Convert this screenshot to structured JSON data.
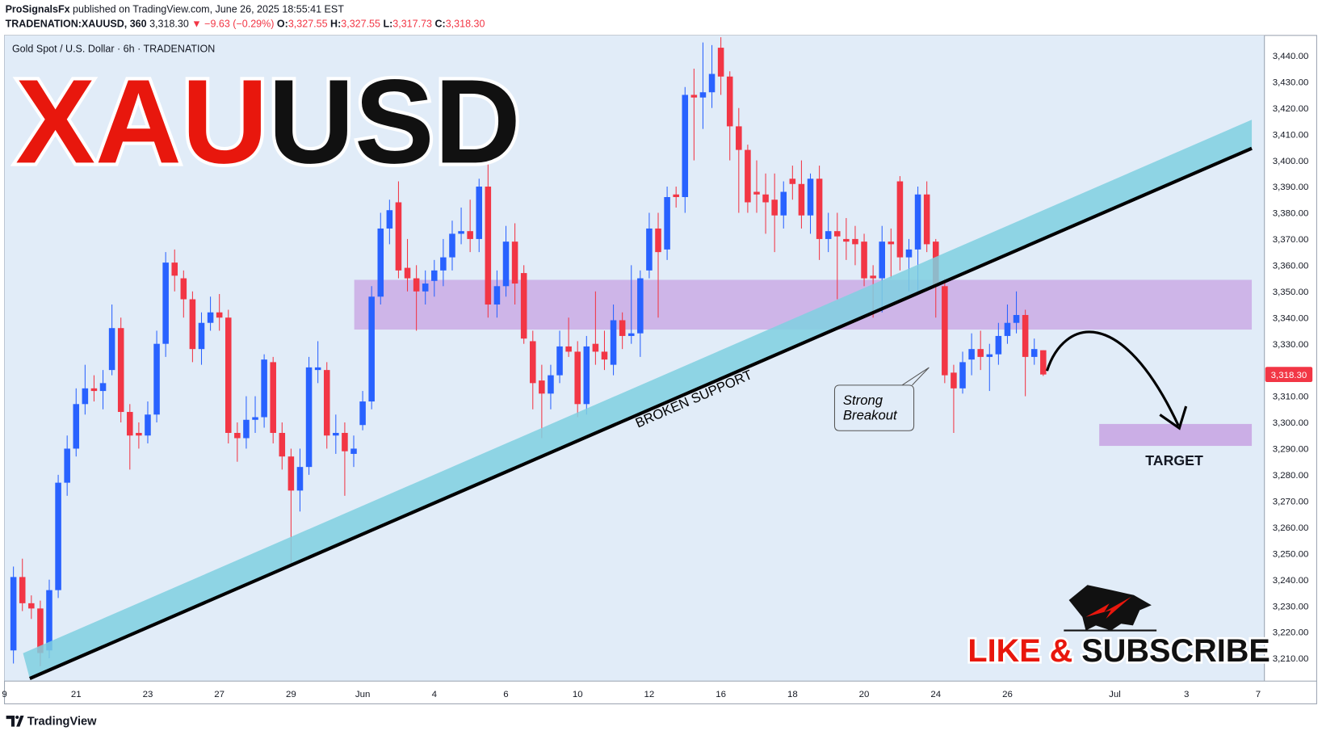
{
  "header": {
    "publisher": "ProSignalsFx",
    "published": "published on TradingView.com, June 26, 2025 18:55:41 EST",
    "symbol": "TRADENATION:XAUUSD, 360",
    "price": "3,318.30",
    "change": "▼ −9.63 (−0.29%)",
    "o_label": "O:",
    "o": "3,327.55",
    "h_label": "H:",
    "h": "3,327.55",
    "l_label": "L:",
    "l": "3,317.73",
    "c_label": "C:",
    "c": "3,318.30"
  },
  "chart_data": {
    "type": "candlestick",
    "title": "Gold Spot / U.S. Dollar · 6h · TRADENATION",
    "up_color": "#2962ff",
    "down_color": "#f23645",
    "open": [
      3213,
      3241,
      3231,
      3229,
      3213,
      3236,
      3277,
      3290,
      3307,
      3313,
      3312,
      3320,
      3336,
      3304,
      3296,
      3295,
      3303,
      3330,
      3361,
      3355,
      3347,
      3328,
      3338,
      3342,
      3340,
      3296,
      3294,
      3301,
      3302,
      3323,
      3296,
      3287,
      3274,
      3283,
      3320,
      3320,
      3295,
      3296,
      3288,
      3299,
      3308,
      3348,
      3374,
      3384,
      3359,
      3355,
      3350,
      3354,
      3358,
      3363,
      3372,
      3373,
      3370,
      3390,
      3345,
      3352,
      3369,
      3357,
      3331,
      3316,
      3311,
      3318,
      3329,
      3327,
      3307,
      3330,
      3327,
      3322,
      3339,
      3333,
      3334,
      3358,
      3374,
      3366,
      3387,
      3386,
      3425,
      3424,
      3426,
      3443,
      3432,
      3413,
      3404,
      3388,
      3387,
      3385,
      3379,
      3393,
      3391,
      3379,
      3393,
      3370,
      3373,
      3370,
      3370,
      3369,
      3356,
      3355,
      3369,
      3392,
      3363,
      3366,
      3387,
      3369,
      3352,
      3319,
      3313,
      3324,
      3328,
      3325,
      3326,
      3333,
      3338,
      3341,
      3325,
      3327.55
    ],
    "high": [
      3245,
      3248,
      3234,
      3232,
      3240,
      3280,
      3295,
      3313,
      3322,
      3318,
      3320,
      3345,
      3340,
      3307,
      3300,
      3308,
      3335,
      3365,
      3366,
      3358,
      3350,
      3342,
      3348,
      3349,
      3343,
      3300,
      3310,
      3310,
      3326,
      3325,
      3300,
      3290,
      3290,
      3325,
      3331,
      3323,
      3303,
      3300,
      3295,
      3312,
      3352,
      3380,
      3385,
      3392,
      3370,
      3360,
      3358,
      3362,
      3370,
      3377,
      3382,
      3385,
      3393,
      3403,
      3358,
      3375,
      3376,
      3360,
      3335,
      3322,
      3322,
      3335,
      3340,
      3331,
      3333,
      3350,
      3335,
      3345,
      3342,
      3360,
      3358,
      3380,
      3380,
      3390,
      3390,
      3428,
      3435,
      3445,
      3444,
      3447,
      3434,
      3420,
      3406,
      3400,
      3395,
      3395,
      3392,
      3398,
      3400,
      3395,
      3398,
      3380,
      3380,
      3378,
      3375,
      3372,
      3360,
      3375,
      3374,
      3394,
      3370,
      3390,
      3392,
      3370,
      3355,
      3322,
      3327,
      3334,
      3335,
      3330,
      3338,
      3345,
      3350,
      3343,
      3332,
      3327.55
    ],
    "low": [
      3208,
      3228,
      3225,
      3207,
      3210,
      3233,
      3272,
      3287,
      3303,
      3308,
      3305,
      3318,
      3300,
      3282,
      3290,
      3292,
      3300,
      3325,
      3350,
      3340,
      3323,
      3322,
      3335,
      3335,
      3292,
      3285,
      3290,
      3296,
      3298,
      3292,
      3282,
      3245,
      3266,
      3280,
      3315,
      3290,
      3288,
      3272,
      3283,
      3297,
      3305,
      3345,
      3368,
      3355,
      3350,
      3335,
      3345,
      3348,
      3352,
      3358,
      3368,
      3365,
      3365,
      3340,
      3340,
      3348,
      3345,
      3330,
      3305,
      3294,
      3305,
      3315,
      3325,
      3302,
      3303,
      3322,
      3320,
      3318,
      3328,
      3330,
      3325,
      3355,
      3340,
      3362,
      3382,
      3380,
      3400,
      3412,
      3420,
      3425,
      3400,
      3380,
      3380,
      3380,
      3372,
      3365,
      3374,
      3385,
      3374,
      3372,
      3362,
      3365,
      3347,
      3362,
      3360,
      3352,
      3340,
      3342,
      3355,
      3358,
      3350,
      3350,
      3365,
      3340,
      3315,
      3296,
      3311,
      3318,
      3320,
      3312,
      3322,
      3330,
      3334,
      3310,
      3322,
      3317.73
    ],
    "close": [
      3241,
      3231,
      3229,
      3212,
      3236,
      3277,
      3290,
      3307,
      3313,
      3312,
      3315,
      3336,
      3304,
      3295,
      3295,
      3303,
      3330,
      3361,
      3356,
      3347,
      3328,
      3338,
      3342,
      3340,
      3296,
      3294,
      3301,
      3302,
      3324,
      3296,
      3287,
      3274,
      3283,
      3321,
      3321,
      3295,
      3296,
      3289,
      3290,
      3308,
      3348,
      3374,
      3381,
      3358,
      3355,
      3350,
      3353,
      3358,
      3363,
      3372,
      3373,
      3370,
      3390,
      3345,
      3352,
      3369,
      3353,
      3332,
      3315,
      3311,
      3318,
      3329,
      3327,
      3307,
      3329,
      3327,
      3324,
      3339,
      3333,
      3334,
      3355,
      3374,
      3365,
      3386,
      3386,
      3425,
      3424,
      3426,
      3433,
      3432,
      3413,
      3404,
      3384,
      3387,
      3384,
      3379,
      3388,
      3391,
      3379,
      3393,
      3370,
      3373,
      3371,
      3369,
      3368,
      3355,
      3355,
      3369,
      3368,
      3363,
      3366,
      3387,
      3368,
      3352,
      3318,
      3313,
      3323,
      3328,
      3325,
      3326,
      3333,
      3338,
      3341,
      3325,
      3328,
      3318.3
    ],
    "xlim": [
      0,
      140.7
    ],
    "xticks": [
      {
        "value": 0,
        "label": "9"
      },
      {
        "value": 8,
        "label": "21"
      },
      {
        "value": 16,
        "label": "23"
      },
      {
        "value": 24,
        "label": "27"
      },
      {
        "value": 32,
        "label": "29"
      },
      {
        "value": 40,
        "label": "Jun"
      },
      {
        "value": 48,
        "label": "4"
      },
      {
        "value": 56,
        "label": "6"
      },
      {
        "value": 64,
        "label": "10"
      },
      {
        "value": 72,
        "label": "12"
      },
      {
        "value": 80,
        "label": "16"
      },
      {
        "value": 88,
        "label": "18"
      },
      {
        "value": 96,
        "label": "20"
      },
      {
        "value": 104,
        "label": "24"
      },
      {
        "value": 112,
        "label": "26"
      },
      {
        "value": 124,
        "label": "Jul"
      },
      {
        "value": 132,
        "label": "3"
      },
      {
        "value": 140,
        "label": "7"
      }
    ],
    "ylim": [
      3201.3,
      3447.7
    ],
    "yticks": [
      {
        "value": 3210,
        "label": "3,210.00"
      },
      {
        "value": 3220,
        "label": "3,220.00"
      },
      {
        "value": 3230,
        "label": "3,230.00"
      },
      {
        "value": 3240,
        "label": "3,240.00"
      },
      {
        "value": 3250,
        "label": "3,250.00"
      },
      {
        "value": 3260,
        "label": "3,260.00"
      },
      {
        "value": 3270,
        "label": "3,270.00"
      },
      {
        "value": 3280,
        "label": "3,280.00"
      },
      {
        "value": 3290,
        "label": "3,290.00"
      },
      {
        "value": 3300,
        "label": "3,300.00"
      },
      {
        "value": 3310,
        "label": "3,310.00"
      },
      {
        "value": 3320,
        "label": "3,320.00"
      },
      {
        "value": 3330,
        "label": "3,330.00"
      },
      {
        "value": 3340,
        "label": "3,340.00"
      },
      {
        "value": 3350,
        "label": "3,350.00"
      },
      {
        "value": 3360,
        "label": "3,360.00"
      },
      {
        "value": 3370,
        "label": "3,370.00"
      },
      {
        "value": 3380,
        "label": "3,380.00"
      },
      {
        "value": 3390,
        "label": "3,390.00"
      },
      {
        "value": 3400,
        "label": "3,400.00"
      },
      {
        "value": 3410,
        "label": "3,410.00"
      },
      {
        "value": 3420,
        "label": "3,420.00"
      },
      {
        "value": 3430,
        "label": "3,430.00"
      },
      {
        "value": 3440,
        "label": "3,440.00"
      }
    ],
    "last_price": {
      "value": 3318.3,
      "label": "3,318.30"
    },
    "annotations": {
      "headline": [
        "XAU",
        "USD"
      ],
      "broken_support": "BROKEN SUPPORT",
      "breakout": [
        "Strong",
        "Breakout"
      ],
      "target": "TARGET",
      "cta": [
        "LIKE &",
        "SUBSCRIBE"
      ]
    }
  },
  "footer": {
    "brand": "TradingView"
  }
}
